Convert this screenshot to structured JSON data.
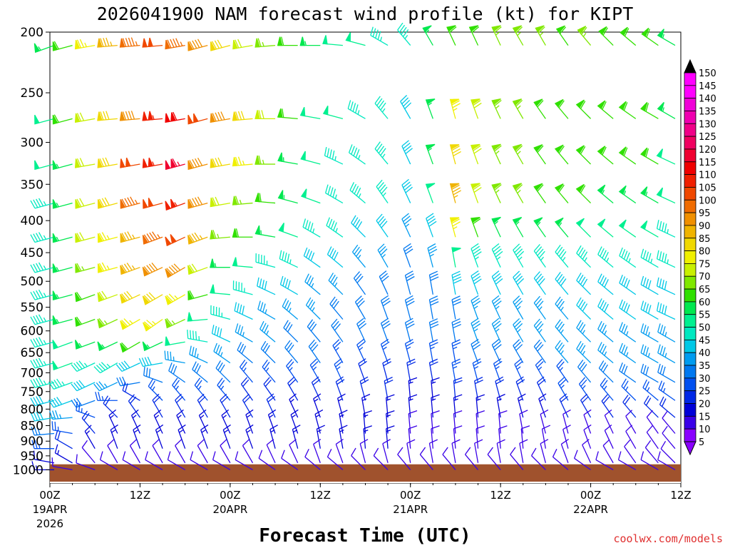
{
  "chart_data": {
    "type": "wind-barb-profile",
    "title": "2026041900 NAM forecast wind profile (kt) for KIPT",
    "xlabel": "Forecast Time (UTC)",
    "ylabel": "",
    "credit": "coolwx.com/models",
    "y_axis": {
      "scale": "log-pressure",
      "range": [
        1050,
        200
      ],
      "ticks": [
        "200",
        "250",
        "300",
        "350",
        "400",
        "450",
        "500",
        "550",
        "600",
        "650",
        "700",
        "750",
        "800",
        "850",
        "900",
        "950",
        "1000"
      ]
    },
    "x_axis": {
      "range_hours": [
        0,
        84
      ],
      "ticks": [
        {
          "hour": 0,
          "label": "00Z",
          "date": "19APR",
          "year": "2026"
        },
        {
          "hour": 12,
          "label": "12Z",
          "date": "",
          "year": ""
        },
        {
          "hour": 24,
          "label": "00Z",
          "date": "20APR",
          "year": ""
        },
        {
          "hour": 36,
          "label": "12Z",
          "date": "",
          "year": ""
        },
        {
          "hour": 48,
          "label": "00Z",
          "date": "21APR",
          "year": ""
        },
        {
          "hour": 60,
          "label": "12Z",
          "date": "",
          "year": ""
        },
        {
          "hour": 72,
          "label": "00Z",
          "date": "22APR",
          "year": ""
        },
        {
          "hour": 84,
          "label": "12Z",
          "date": "",
          "year": ""
        }
      ]
    },
    "colorbar": {
      "min": 5,
      "max": 150,
      "step": 5,
      "labels": [
        "150",
        "145",
        "140",
        "135",
        "130",
        "125",
        "120",
        "115",
        "110",
        "105",
        "100",
        "95",
        "90",
        "85",
        "80",
        "75",
        "70",
        "65",
        "60",
        "55",
        "50",
        "45",
        "40",
        "35",
        "30",
        "25",
        "20",
        "15",
        "10",
        "5"
      ]
    },
    "hours": [
      0,
      3,
      6,
      9,
      12,
      15,
      18,
      21,
      24,
      27,
      30,
      33,
      36,
      39,
      42,
      45,
      48,
      51,
      54,
      57,
      60,
      63,
      66,
      69,
      72,
      75,
      78,
      81,
      84
    ],
    "levels": [
      210,
      275,
      325,
      375,
      425,
      475,
      525,
      575,
      625,
      675,
      725,
      775,
      825,
      875,
      925,
      975,
      1000
    ],
    "speed_kt": [
      [
        55,
        60,
        75,
        85,
        95,
        100,
        95,
        90,
        80,
        70,
        65,
        60,
        55,
        50,
        50,
        45,
        45,
        55,
        60,
        60,
        65,
        65,
        65,
        60,
        65,
        60,
        60,
        60,
        55
      ],
      [
        50,
        60,
        70,
        80,
        90,
        105,
        110,
        100,
        90,
        80,
        70,
        60,
        50,
        50,
        45,
        45,
        40,
        55,
        75,
        70,
        65,
        65,
        60,
        60,
        60,
        60,
        60,
        60,
        55
      ],
      [
        50,
        55,
        70,
        80,
        100,
        105,
        115,
        90,
        80,
        75,
        65,
        55,
        50,
        45,
        45,
        45,
        40,
        55,
        80,
        70,
        65,
        65,
        60,
        60,
        60,
        60,
        60,
        60,
        50
      ],
      [
        45,
        55,
        70,
        80,
        95,
        100,
        105,
        90,
        70,
        65,
        60,
        55,
        50,
        45,
        45,
        45,
        40,
        50,
        85,
        70,
        65,
        65,
        60,
        60,
        60,
        55,
        55,
        55,
        50
      ],
      [
        45,
        55,
        70,
        75,
        85,
        95,
        100,
        85,
        65,
        60,
        55,
        50,
        45,
        45,
        40,
        40,
        35,
        40,
        75,
        60,
        55,
        55,
        55,
        55,
        50,
        50,
        50,
        50,
        45
      ],
      [
        45,
        55,
        65,
        75,
        85,
        90,
        90,
        70,
        55,
        50,
        45,
        45,
        40,
        40,
        35,
        35,
        30,
        35,
        50,
        45,
        45,
        45,
        45,
        45,
        45,
        45,
        45,
        45,
        45
      ],
      [
        45,
        55,
        60,
        70,
        80,
        80,
        75,
        60,
        50,
        45,
        40,
        40,
        35,
        35,
        30,
        30,
        30,
        30,
        40,
        40,
        40,
        40,
        40,
        40,
        40,
        40,
        40,
        40,
        40
      ],
      [
        45,
        55,
        60,
        65,
        75,
        75,
        65,
        50,
        45,
        40,
        35,
        35,
        35,
        30,
        30,
        30,
        30,
        30,
        30,
        35,
        35,
        35,
        35,
        35,
        40,
        40,
        40,
        40,
        40
      ],
      [
        45,
        50,
        55,
        55,
        60,
        55,
        50,
        45,
        40,
        35,
        35,
        30,
        30,
        30,
        30,
        30,
        30,
        30,
        30,
        35,
        35,
        35,
        35,
        35,
        35,
        35,
        35,
        35,
        35
      ],
      [
        45,
        50,
        45,
        45,
        40,
        40,
        35,
        35,
        35,
        30,
        30,
        30,
        30,
        25,
        25,
        25,
        25,
        25,
        25,
        30,
        30,
        30,
        30,
        35,
        35,
        35,
        35,
        35,
        35
      ],
      [
        45,
        45,
        40,
        35,
        30,
        30,
        30,
        30,
        30,
        25,
        25,
        25,
        25,
        25,
        20,
        20,
        20,
        20,
        25,
        25,
        25,
        25,
        25,
        25,
        30,
        30,
        30,
        30,
        30
      ],
      [
        40,
        40,
        30,
        25,
        20,
        25,
        25,
        25,
        25,
        20,
        20,
        20,
        20,
        20,
        20,
        20,
        15,
        15,
        20,
        20,
        20,
        20,
        20,
        25,
        25,
        25,
        25,
        25,
        25
      ],
      [
        40,
        35,
        25,
        20,
        20,
        20,
        20,
        20,
        20,
        20,
        20,
        15,
        15,
        15,
        15,
        15,
        15,
        15,
        15,
        15,
        15,
        15,
        15,
        20,
        20,
        20,
        20,
        20,
        20
      ],
      [
        30,
        25,
        20,
        15,
        15,
        15,
        15,
        15,
        15,
        15,
        15,
        15,
        15,
        15,
        15,
        15,
        10,
        10,
        10,
        10,
        10,
        10,
        10,
        10,
        10,
        10,
        10,
        10,
        10
      ],
      [
        25,
        20,
        15,
        15,
        15,
        15,
        15,
        15,
        15,
        15,
        15,
        15,
        15,
        15,
        15,
        15,
        10,
        10,
        10,
        10,
        10,
        10,
        10,
        10,
        10,
        10,
        10,
        10,
        10
      ],
      [
        15,
        15,
        10,
        10,
        10,
        10,
        10,
        10,
        10,
        10,
        10,
        10,
        10,
        10,
        10,
        10,
        10,
        10,
        10,
        10,
        10,
        10,
        10,
        10,
        10,
        10,
        10,
        10,
        10
      ],
      [
        15,
        10,
        10,
        10,
        10,
        10,
        10,
        10,
        10,
        10,
        10,
        10,
        10,
        10,
        10,
        10,
        10,
        10,
        10,
        10,
        10,
        10,
        10,
        10,
        10,
        10,
        10,
        10,
        10
      ]
    ],
    "direction_deg": [
      [
        250,
        255,
        260,
        265,
        265,
        265,
        260,
        255,
        255,
        260,
        265,
        270,
        270,
        275,
        285,
        300,
        320,
        330,
        335,
        335,
        335,
        330,
        330,
        325,
        320,
        315,
        310,
        305,
        300
      ],
      [
        255,
        255,
        260,
        265,
        265,
        265,
        260,
        255,
        260,
        265,
        270,
        275,
        280,
        285,
        300,
        320,
        330,
        340,
        345,
        340,
        335,
        330,
        325,
        320,
        315,
        310,
        305,
        300,
        300
      ],
      [
        255,
        255,
        260,
        260,
        260,
        260,
        255,
        255,
        260,
        265,
        270,
        280,
        285,
        295,
        305,
        320,
        335,
        340,
        345,
        340,
        335,
        330,
        325,
        320,
        315,
        310,
        305,
        300,
        295
      ],
      [
        255,
        255,
        255,
        255,
        255,
        255,
        250,
        255,
        260,
        265,
        275,
        285,
        290,
        300,
        310,
        325,
        335,
        340,
        345,
        340,
        335,
        330,
        325,
        320,
        315,
        310,
        305,
        300,
        295
      ],
      [
        255,
        255,
        255,
        255,
        255,
        250,
        245,
        250,
        265,
        270,
        280,
        290,
        300,
        305,
        315,
        325,
        335,
        340,
        345,
        340,
        335,
        330,
        325,
        320,
        315,
        310,
        305,
        300,
        295
      ],
      [
        255,
        255,
        255,
        255,
        250,
        245,
        240,
        250,
        270,
        275,
        285,
        295,
        305,
        310,
        320,
        330,
        340,
        345,
        350,
        340,
        335,
        330,
        325,
        320,
        315,
        310,
        305,
        300,
        295
      ],
      [
        255,
        255,
        250,
        250,
        245,
        240,
        240,
        255,
        275,
        285,
        295,
        300,
        310,
        315,
        325,
        335,
        345,
        350,
        350,
        340,
        335,
        330,
        325,
        320,
        315,
        310,
        305,
        300,
        295
      ],
      [
        255,
        255,
        250,
        245,
        240,
        235,
        245,
        265,
        285,
        295,
        300,
        310,
        315,
        320,
        330,
        340,
        345,
        350,
        350,
        340,
        335,
        330,
        325,
        320,
        315,
        310,
        305,
        300,
        295
      ],
      [
        255,
        250,
        250,
        245,
        240,
        245,
        260,
        280,
        295,
        300,
        310,
        315,
        320,
        325,
        335,
        340,
        345,
        350,
        350,
        340,
        335,
        330,
        325,
        320,
        315,
        310,
        305,
        300,
        300
      ],
      [
        255,
        250,
        245,
        240,
        245,
        260,
        280,
        295,
        305,
        310,
        315,
        320,
        325,
        330,
        335,
        340,
        345,
        350,
        350,
        340,
        335,
        330,
        325,
        320,
        315,
        310,
        305,
        300,
        300
      ],
      [
        255,
        250,
        245,
        245,
        260,
        290,
        305,
        310,
        315,
        320,
        320,
        325,
        330,
        335,
        340,
        345,
        350,
        350,
        350,
        345,
        340,
        335,
        330,
        325,
        320,
        315,
        305,
        300,
        300
      ],
      [
        255,
        250,
        250,
        270,
        300,
        315,
        320,
        320,
        320,
        325,
        325,
        330,
        335,
        340,
        345,
        350,
        355,
        355,
        355,
        350,
        345,
        340,
        335,
        330,
        325,
        320,
        315,
        310,
        305
      ],
      [
        260,
        265,
        290,
        315,
        325,
        330,
        330,
        330,
        330,
        330,
        335,
        335,
        340,
        345,
        350,
        355,
        355,
        355,
        355,
        355,
        350,
        345,
        340,
        335,
        330,
        325,
        320,
        315,
        310
      ],
      [
        265,
        280,
        320,
        335,
        335,
        335,
        335,
        335,
        335,
        340,
        340,
        340,
        345,
        350,
        355,
        355,
        355,
        355,
        355,
        355,
        355,
        350,
        345,
        345,
        340,
        335,
        330,
        325,
        320
      ],
      [
        270,
        300,
        330,
        340,
        340,
        340,
        340,
        340,
        340,
        340,
        345,
        345,
        350,
        350,
        355,
        355,
        355,
        355,
        355,
        355,
        355,
        355,
        350,
        345,
        340,
        335,
        330,
        325,
        320
      ],
      [
        280,
        300,
        320,
        330,
        330,
        330,
        330,
        330,
        330,
        330,
        335,
        335,
        340,
        340,
        345,
        345,
        350,
        350,
        350,
        350,
        350,
        350,
        345,
        340,
        335,
        330,
        325,
        320,
        315
      ],
      [
        270,
        280,
        290,
        300,
        300,
        300,
        300,
        300,
        300,
        300,
        305,
        305,
        310,
        310,
        315,
        315,
        320,
        320,
        320,
        320,
        320,
        320,
        315,
        310,
        305,
        300,
        300,
        300,
        300
      ]
    ],
    "terrain": {
      "surface_pressure_hpa": 980,
      "color": "#a0522d"
    }
  }
}
